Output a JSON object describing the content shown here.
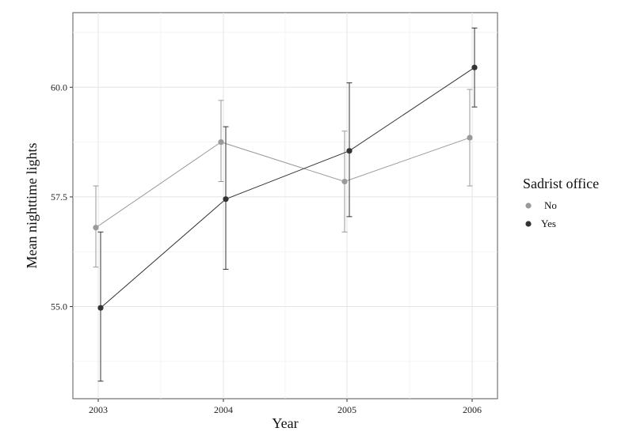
{
  "chart_data": {
    "type": "line",
    "xlabel": "Year",
    "ylabel": "Mean nighttime lights",
    "categories": [
      "2003",
      "2004",
      "2005",
      "2006"
    ],
    "ylim": [
      52.9,
      61.7
    ],
    "yticks": [
      55.0,
      57.5,
      60.0
    ],
    "ytick_labels": [
      "55.0",
      "57.5",
      "60.0"
    ],
    "grid": true,
    "error_bars": true,
    "legend": {
      "title": "Sadrist office",
      "position": "right"
    },
    "series": [
      {
        "name": "No",
        "color": "#9a9a9a",
        "values": [
          56.8,
          58.75,
          57.85,
          58.85
        ],
        "lower": [
          55.9,
          57.85,
          56.7,
          57.75
        ],
        "upper": [
          57.75,
          59.7,
          59.0,
          59.95
        ]
      },
      {
        "name": "Yes",
        "color": "#333333",
        "values": [
          54.97,
          57.45,
          58.55,
          60.45
        ],
        "lower": [
          53.3,
          55.85,
          57.05,
          59.55
        ],
        "upper": [
          56.7,
          59.1,
          60.1,
          61.35
        ]
      }
    ]
  }
}
